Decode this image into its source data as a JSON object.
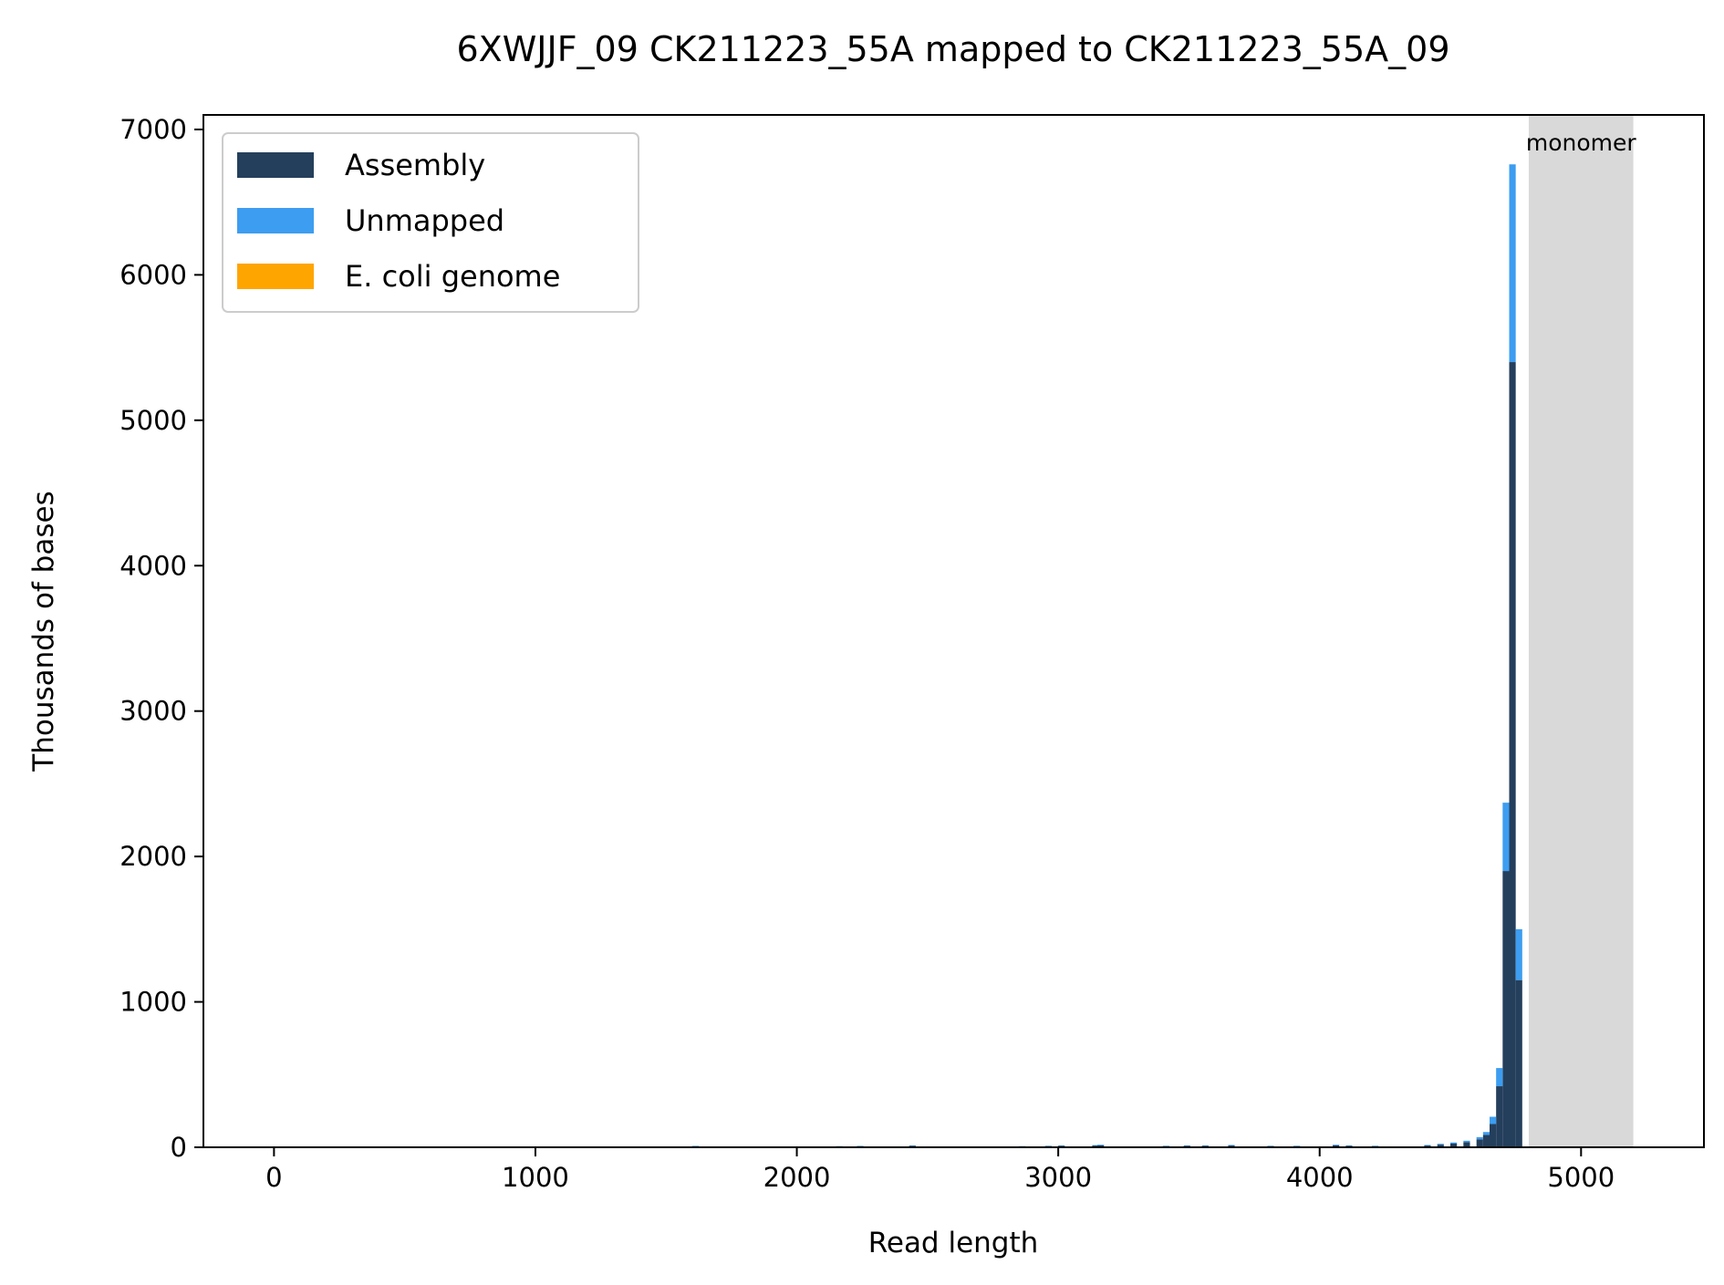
{
  "chart_data": {
    "type": "bar",
    "title": "6XWJJF_09 CK211223_55A mapped to CK211223_55A_09",
    "xlabel": "Read length",
    "ylabel": "Thousands of bases",
    "xlim": [
      -270,
      5470
    ],
    "ylim": [
      0,
      7100
    ],
    "xticks": [
      0,
      1000,
      2000,
      3000,
      4000,
      5000
    ],
    "yticks": [
      0,
      1000,
      2000,
      3000,
      4000,
      5000,
      6000,
      7000
    ],
    "bin_width": 25,
    "stacked": true,
    "grid": false,
    "legend_position": "top-left",
    "region": {
      "label": "monomer",
      "x_start": 4800,
      "x_end": 5200,
      "color": "#d9d9d9"
    },
    "series": [
      {
        "name": "Assembly",
        "color": "#243f5c",
        "x": [
          1600,
          2150,
          2230,
          2430,
          2850,
          2950,
          3000,
          3130,
          3150,
          3400,
          3480,
          3550,
          3650,
          3800,
          3900,
          4050,
          4100,
          4200,
          4400,
          4450,
          4500,
          4550,
          4600,
          4625,
          4650,
          4675,
          4700,
          4725,
          4750
        ],
        "values": [
          8,
          6,
          8,
          10,
          6,
          8,
          10,
          12,
          14,
          8,
          10,
          10,
          12,
          8,
          8,
          14,
          10,
          8,
          12,
          18,
          25,
          35,
          55,
          85,
          160,
          420,
          1900,
          5400,
          1150
        ]
      },
      {
        "name": "Unmapped",
        "color": "#3d9df0",
        "x": [
          1600,
          2150,
          2230,
          2430,
          2850,
          2950,
          3000,
          3130,
          3150,
          3400,
          3480,
          3550,
          3650,
          3800,
          3900,
          4050,
          4100,
          4200,
          4400,
          4450,
          4500,
          4550,
          4600,
          4625,
          4650,
          4675,
          4700,
          4725,
          4750
        ],
        "values": [
          2,
          2,
          2,
          3,
          2,
          3,
          3,
          3,
          4,
          3,
          3,
          3,
          4,
          3,
          3,
          4,
          3,
          3,
          4,
          6,
          8,
          10,
          15,
          20,
          50,
          125,
          470,
          1360,
          350
        ]
      },
      {
        "name": "E. coli genome",
        "color": "#ffa500",
        "x": [],
        "values": []
      }
    ]
  }
}
